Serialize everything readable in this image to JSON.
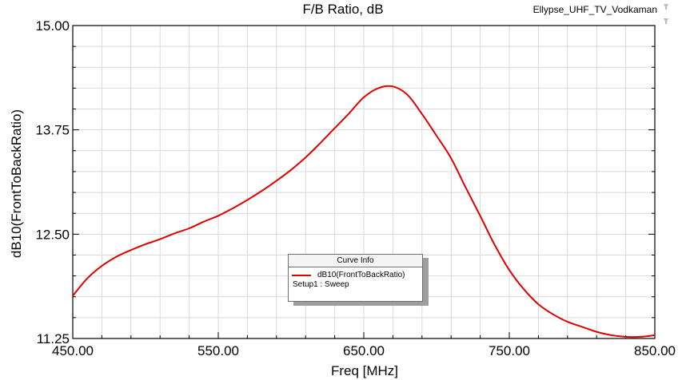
{
  "header": {
    "title": "F/B Ratio, dB",
    "project": "Ellypse_UHF_TV_Vodkaman"
  },
  "legend": {
    "title": "Curve Info",
    "entry": "dB10(FrontToBackRatio)",
    "setup": "Setup1 : Sweep"
  },
  "colors": {
    "curve": "#e00000",
    "grid": "#d9d9d9",
    "axis": "#000000"
  },
  "icons": [
    "pin-icon",
    "pin-icon"
  ],
  "chart_data": {
    "type": "line",
    "title": "F/B Ratio, dB",
    "xlabel": "Freq [MHz]",
    "ylabel": "dB10(FrontToBackRatio)",
    "xlim": [
      450,
      850
    ],
    "ylim": [
      11.25,
      15.0
    ],
    "xticks": [
      450,
      550,
      650,
      750,
      850
    ],
    "xtick_labels": [
      "450.00",
      "550.00",
      "650.00",
      "750.00",
      "850.00"
    ],
    "yticks": [
      11.25,
      12.5,
      13.75,
      15.0
    ],
    "ytick_labels": [
      "11.25",
      "12.50",
      "13.75",
      "15.00"
    ],
    "grid": true,
    "legend_position": "center-bottom",
    "series": [
      {
        "name": "dB10(FrontToBackRatio)",
        "x": [
          450,
          460,
          470,
          480,
          490,
          500,
          510,
          520,
          530,
          540,
          550,
          560,
          570,
          580,
          590,
          600,
          610,
          620,
          630,
          640,
          650,
          660,
          670,
          680,
          690,
          700,
          710,
          720,
          730,
          740,
          750,
          760,
          770,
          780,
          790,
          800,
          810,
          820,
          830,
          840,
          850
        ],
        "y": [
          11.76,
          11.97,
          12.12,
          12.23,
          12.31,
          12.38,
          12.44,
          12.51,
          12.57,
          12.65,
          12.72,
          12.81,
          12.91,
          13.02,
          13.14,
          13.27,
          13.42,
          13.59,
          13.77,
          13.95,
          14.14,
          14.25,
          14.27,
          14.17,
          13.94,
          13.68,
          13.41,
          13.06,
          12.72,
          12.37,
          12.07,
          11.84,
          11.66,
          11.54,
          11.45,
          11.39,
          11.33,
          11.29,
          11.27,
          11.27,
          11.29
        ]
      }
    ]
  }
}
